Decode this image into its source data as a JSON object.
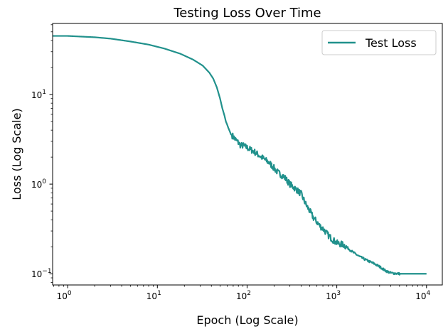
{
  "chart_data": {
    "type": "line",
    "title": "Testing Loss Over Time",
    "xlabel": "Epoch (Log Scale)",
    "ylabel": "Loss (Log Scale)",
    "xscale": "log",
    "yscale": "log",
    "xlim": [
      0.68,
      15000
    ],
    "ylim": [
      0.075,
      62
    ],
    "grid": false,
    "legend": "top-right",
    "line_color": "#21918c",
    "x_ticks": [
      {
        "value": 1,
        "base": "10",
        "exp": "0"
      },
      {
        "value": 10,
        "base": "10",
        "exp": "1"
      },
      {
        "value": 100,
        "base": "10",
        "exp": "2"
      },
      {
        "value": 1000,
        "base": "10",
        "exp": "3"
      },
      {
        "value": 10000,
        "base": "10",
        "exp": "4"
      }
    ],
    "y_ticks": [
      {
        "value": 0.1,
        "base": "10",
        "exp": "−1"
      },
      {
        "value": 1,
        "base": "10",
        "exp": "0"
      },
      {
        "value": 10,
        "base": "10",
        "exp": "1"
      }
    ],
    "series": [
      {
        "name": "Test Loss",
        "x": [
          0.68,
          1,
          2,
          3,
          5,
          8,
          12,
          18,
          25,
          32,
          38,
          42,
          46,
          50,
          53,
          56,
          58,
          60,
          62,
          64,
          66,
          70,
          75,
          80,
          85,
          90,
          100,
          120,
          150,
          180,
          220,
          260,
          300,
          350,
          400,
          450,
          500,
          550,
          600,
          650,
          700,
          800,
          900,
          1000,
          1200,
          1500,
          1800,
          2200,
          2600,
          3000,
          3500,
          4000,
          5000,
          6000,
          8000,
          10000
        ],
        "y": [
          45,
          45,
          43.5,
          42,
          39,
          36,
          32.5,
          28.5,
          24.5,
          21,
          17.5,
          15,
          12,
          9,
          7,
          5.8,
          5.0,
          4.6,
          4.2,
          3.9,
          3.6,
          3.4,
          3.1,
          2.9,
          2.7,
          2.7,
          2.55,
          2.3,
          1.95,
          1.7,
          1.35,
          1.2,
          1.0,
          0.88,
          0.78,
          0.6,
          0.5,
          0.42,
          0.38,
          0.34,
          0.32,
          0.27,
          0.24,
          0.22,
          0.21,
          0.175,
          0.155,
          0.14,
          0.13,
          0.12,
          0.108,
          0.102,
          0.1,
          0.1,
          0.1,
          0.1
        ]
      }
    ]
  }
}
